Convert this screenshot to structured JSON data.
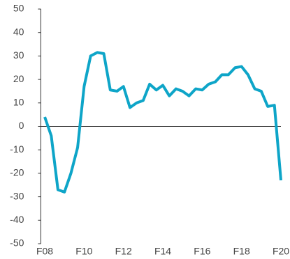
{
  "chart_data": {
    "type": "line",
    "x": [
      2008,
      2008.33,
      2008.67,
      2009,
      2009.33,
      2009.67,
      2010,
      2010.33,
      2010.67,
      2011,
      2011.33,
      2011.67,
      2012,
      2012.33,
      2012.67,
      2013,
      2013.33,
      2013.67,
      2014,
      2014.33,
      2014.67,
      2015,
      2015.33,
      2015.67,
      2016,
      2016.33,
      2016.67,
      2017,
      2017.33,
      2017.67,
      2018,
      2018.33,
      2018.67,
      2019,
      2019.33,
      2019.67,
      2020
    ],
    "series": [
      {
        "color": "#0ea5c8",
        "values": [
          4,
          -4,
          -27,
          -28,
          -20,
          -9,
          17,
          30,
          31.5,
          31,
          15.5,
          15,
          17,
          8,
          10,
          11,
          18,
          15.5,
          17.5,
          13,
          16,
          15,
          13,
          16,
          15.5,
          18,
          19,
          22,
          22,
          25,
          25.5,
          22,
          16,
          15,
          8.5,
          9,
          -23
        ]
      }
    ],
    "xlim": [
      2007.8,
      2020
    ],
    "xticks": [
      {
        "value": 2008,
        "label": "F08"
      },
      {
        "value": 2010,
        "label": "F10"
      },
      {
        "value": 2012,
        "label": "F12"
      },
      {
        "value": 2014,
        "label": "F14"
      },
      {
        "value": 2016,
        "label": "F16"
      },
      {
        "value": 2018,
        "label": "F18"
      },
      {
        "value": 2020,
        "label": "F20"
      }
    ],
    "ylim": [
      -50,
      50
    ],
    "yticks": [
      -50,
      -40,
      -30,
      -20,
      -10,
      0,
      10,
      20,
      30,
      40,
      50
    ]
  }
}
